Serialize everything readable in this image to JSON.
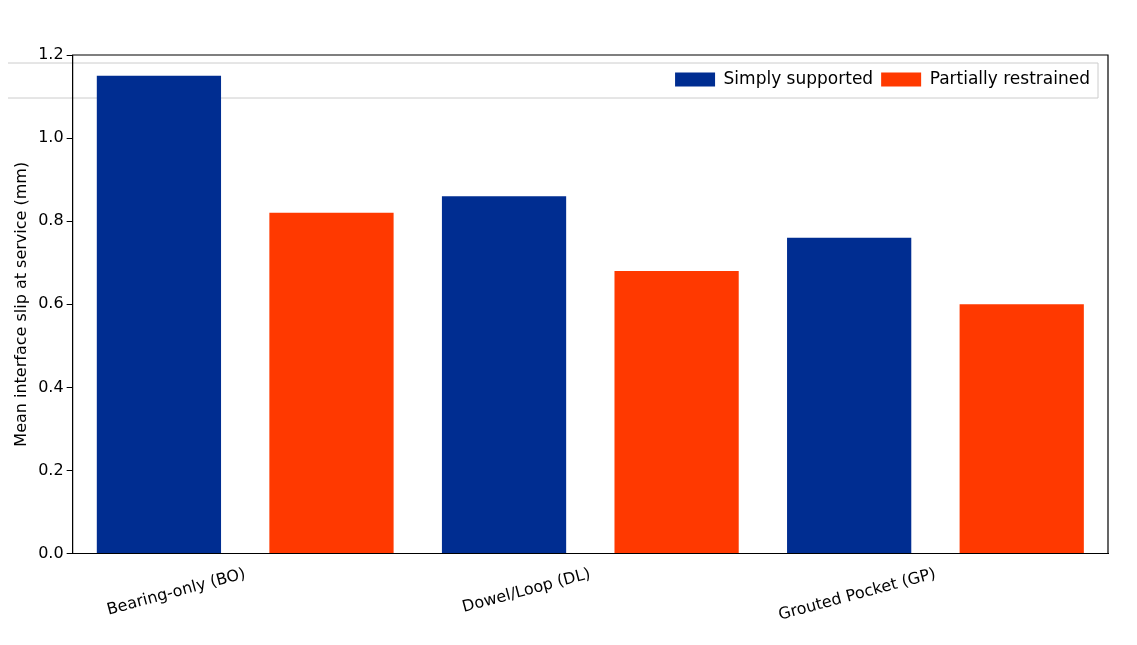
{
  "chart_data": {
    "type": "bar",
    "ylabel": "Mean interface slip at service (mm)",
    "categories": [
      "Bearing-only (BO)",
      "Dowel/Loop (DL)",
      "Grouted Pocket (GP)"
    ],
    "series": [
      {
        "name": "Simply supported",
        "color": "#002d91",
        "values": [
          1.15,
          0.86,
          0.76
        ]
      },
      {
        "name": "Partially restrained",
        "color": "#ff3900",
        "values": [
          0.82,
          0.68,
          0.6
        ]
      }
    ],
    "ylim": [
      0,
      1.2
    ],
    "yticks": [
      {
        "value": 0,
        "label": "0.0"
      },
      0.2,
      0.4,
      0.6,
      0.8,
      {
        "value": 1,
        "label": "1.0"
      },
      1.2
    ],
    "grid": false,
    "legend": "top right"
  }
}
